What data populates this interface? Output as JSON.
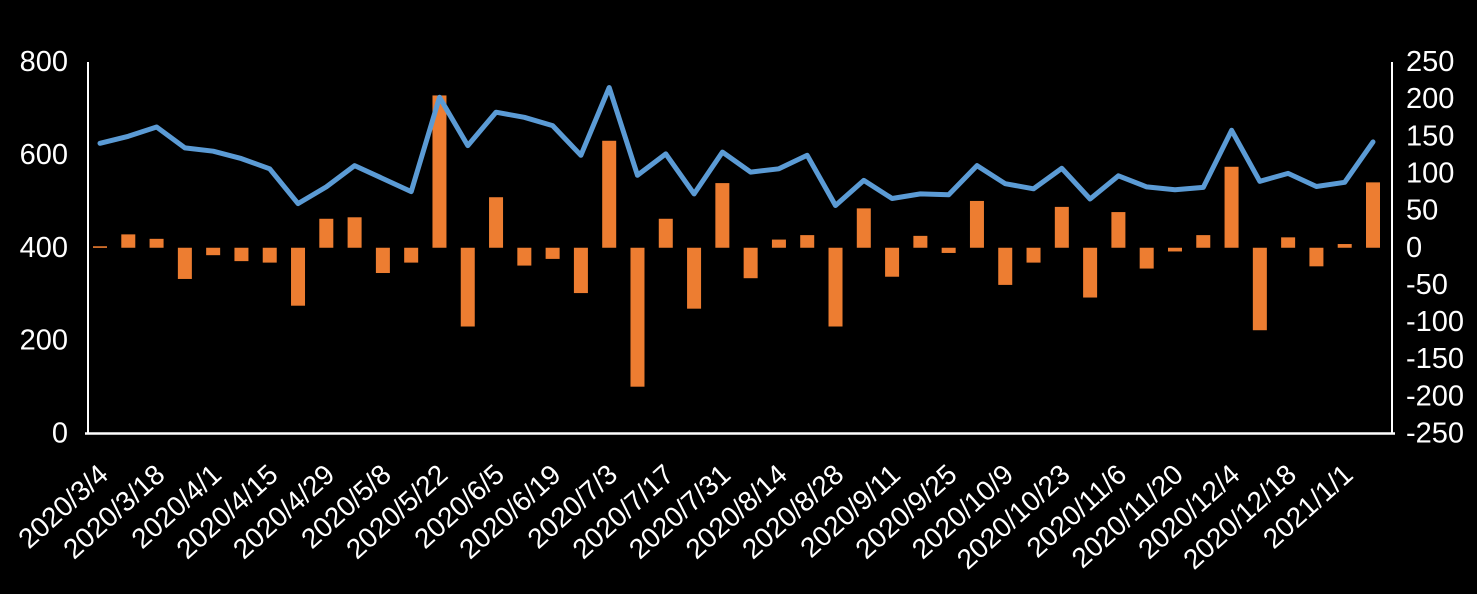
{
  "chart_data": {
    "type": "combo",
    "title": "",
    "background_color": "#000000",
    "text_color": "#ffffff",
    "axis_color": "#ffffff",
    "grid": "off",
    "legend": "none",
    "n_points": 46,
    "x_tick_every": 2,
    "x_tick_labels": [
      "2020/3/4",
      "2020/3/18",
      "2020/4/1",
      "2020/4/15",
      "2020/4/29",
      "2020/5/8",
      "2020/5/22",
      "2020/6/5",
      "2020/6/19",
      "2020/7/3",
      "2020/7/17",
      "2020/7/31",
      "2020/8/14",
      "2020/8/28",
      "2020/9/11",
      "2020/9/25",
      "2020/10/9",
      "2020/10/23",
      "2020/11/6",
      "2020/11/20",
      "2020/12/4",
      "2020/12/18",
      "2021/1/1"
    ],
    "left_axis": {
      "min": 0,
      "max": 800,
      "ticks": [
        800,
        600,
        400,
        200,
        0
      ]
    },
    "right_axis": {
      "min": -250,
      "max": 250,
      "ticks": [
        250,
        200,
        150,
        100,
        50,
        0,
        -50,
        -100,
        -150,
        -200,
        -250
      ]
    },
    "series": [
      {
        "name": "line-series-left-axis",
        "type": "line",
        "axis": "left",
        "color": "#5B9BD5",
        "values": [
          625,
          640,
          660,
          615,
          608,
          592,
          570,
          495,
          531,
          577,
          549,
          521,
          724,
          620,
          692,
          681,
          663,
          599,
          745,
          556,
          602,
          516,
          606,
          563,
          570,
          599,
          491,
          545,
          506,
          516,
          514,
          577,
          538,
          527,
          571,
          505,
          555,
          531,
          525,
          530,
          653,
          543,
          560,
          532,
          541,
          628
        ]
      },
      {
        "name": "bar-series-right-axis",
        "type": "bar",
        "axis": "right",
        "color": "#ED7D31",
        "values": [
          2,
          18,
          12,
          -42,
          -10,
          -18,
          -20,
          -78,
          39,
          41,
          -34,
          -20,
          205,
          -106,
          68,
          -24,
          -15,
          -61,
          144,
          -187,
          39,
          -82,
          87,
          -41,
          11,
          17,
          -106,
          53,
          -39,
          16,
          -7,
          63,
          -50,
          -20,
          55,
          -67,
          48,
          -28,
          -5,
          17,
          109,
          -111,
          14,
          -25,
          5,
          88
        ]
      }
    ]
  }
}
